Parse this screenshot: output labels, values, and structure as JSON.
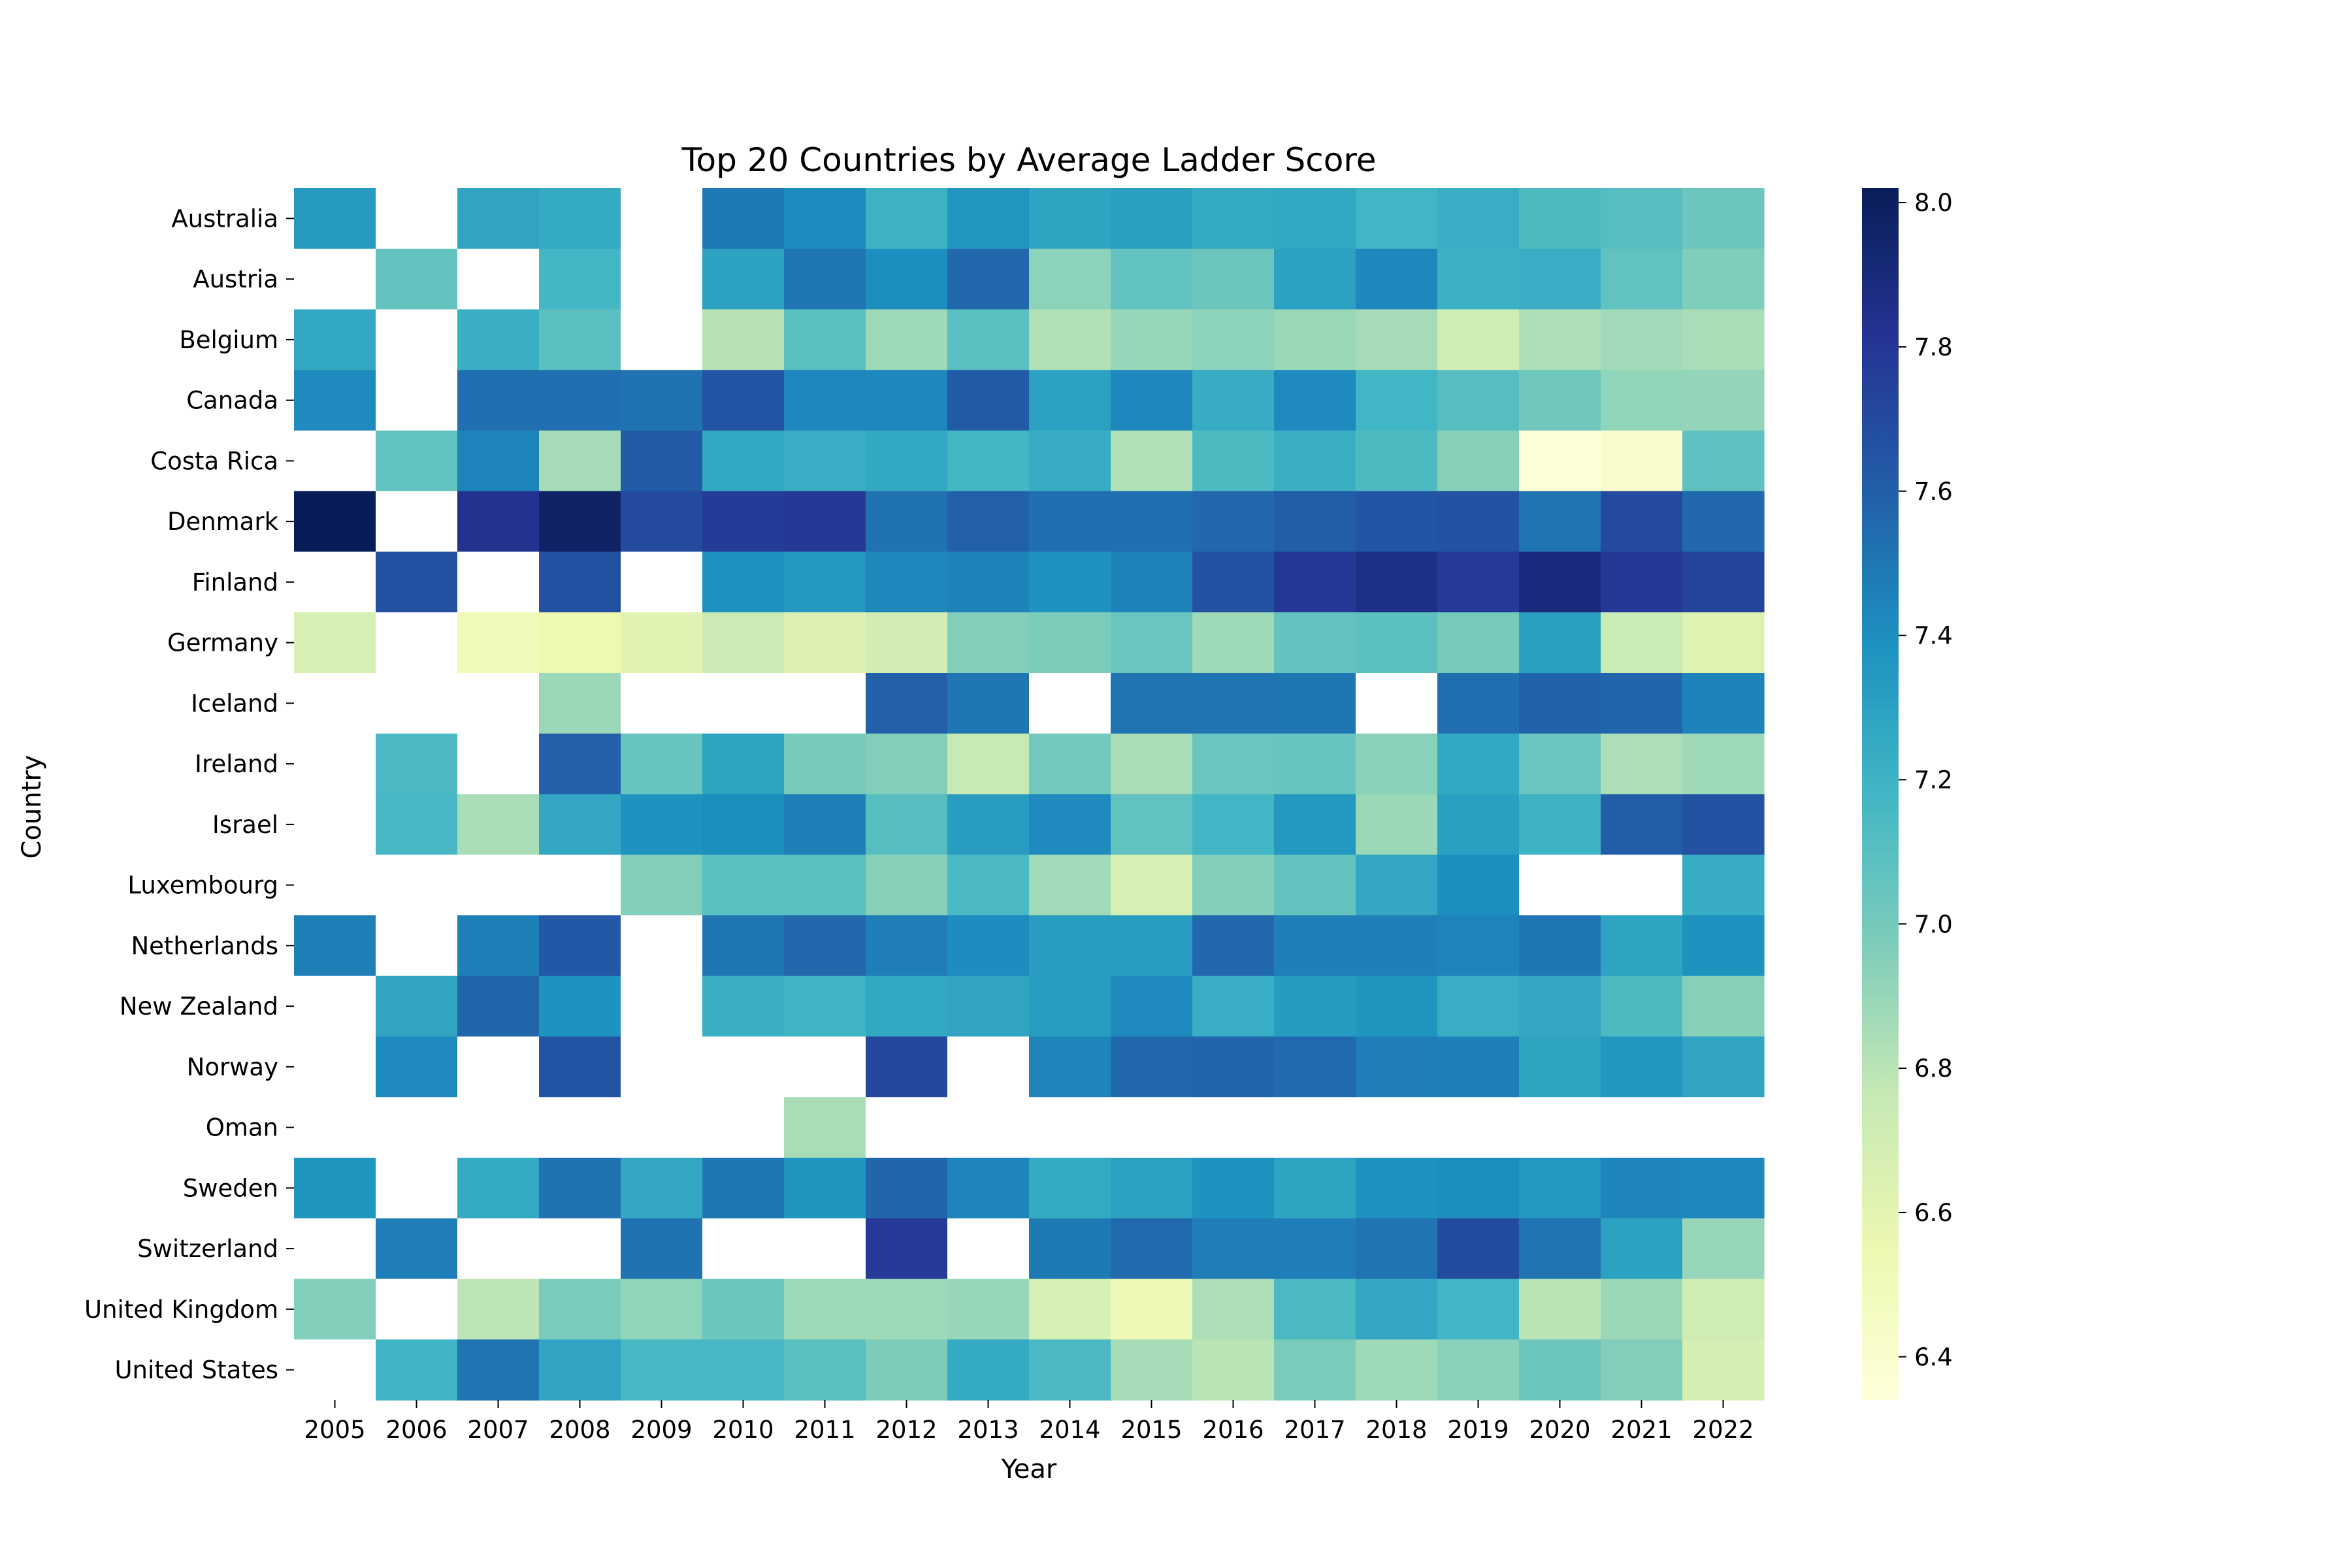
{
  "chart_data": {
    "type": "heatmap",
    "title": "Top 20 Countries by Average Ladder Score",
    "xlabel": "Year",
    "ylabel": "Country",
    "x": [
      "2005",
      "2006",
      "2007",
      "2008",
      "2009",
      "2010",
      "2011",
      "2012",
      "2013",
      "2014",
      "2015",
      "2016",
      "2017",
      "2018",
      "2019",
      "2020",
      "2021",
      "2022"
    ],
    "y": [
      "Australia",
      "Austria",
      "Belgium",
      "Canada",
      "Costa Rica",
      "Denmark",
      "Finland",
      "Germany",
      "Iceland",
      "Ireland",
      "Israel",
      "Luxembourg",
      "Netherlands",
      "New Zealand",
      "Norway",
      "Oman",
      "Sweden",
      "Switzerland",
      "United Kingdom",
      "United States"
    ],
    "values": [
      [
        7.34,
        null,
        7.28,
        7.25,
        null,
        7.49,
        7.41,
        7.2,
        7.36,
        7.29,
        7.31,
        7.25,
        7.26,
        7.18,
        7.23,
        7.14,
        7.11,
        7.03
      ],
      [
        null,
        7.06,
        null,
        7.17,
        null,
        7.3,
        7.5,
        7.4,
        7.56,
        6.93,
        7.07,
        7.03,
        7.3,
        7.43,
        7.21,
        7.23,
        7.07,
        6.97
      ],
      [
        7.26,
        null,
        7.22,
        7.09,
        null,
        6.81,
        7.1,
        6.88,
        7.1,
        6.83,
        6.9,
        6.93,
        6.89,
        6.86,
        6.71,
        6.84,
        6.87,
        6.85
      ],
      [
        7.42,
        null,
        7.53,
        7.53,
        7.52,
        7.65,
        7.43,
        7.43,
        7.61,
        7.3,
        7.43,
        7.24,
        7.42,
        7.18,
        7.11,
        7.02,
        6.92,
        6.91
      ],
      [
        null,
        7.07,
        7.44,
        6.86,
        7.62,
        7.26,
        7.23,
        7.26,
        7.17,
        7.24,
        6.83,
        7.14,
        7.22,
        7.14,
        6.95,
        6.35,
        6.41,
        7.08
      ],
      [
        8.02,
        null,
        7.83,
        7.97,
        7.7,
        7.77,
        7.79,
        7.52,
        7.59,
        7.53,
        7.53,
        7.56,
        7.6,
        7.64,
        7.66,
        7.51,
        7.7,
        7.56
      ],
      [
        null,
        7.67,
        null,
        7.67,
        null,
        7.39,
        7.35,
        7.43,
        7.45,
        7.38,
        7.45,
        7.66,
        7.79,
        7.86,
        7.78,
        7.89,
        7.79,
        7.73
      ],
      [
        6.67,
        null,
        6.51,
        6.55,
        6.62,
        6.73,
        6.64,
        6.7,
        6.96,
        6.98,
        7.04,
        6.88,
        7.06,
        7.09,
        7.0,
        7.31,
        6.74,
        6.63
      ],
      [
        null,
        null,
        null,
        6.89,
        null,
        null,
        null,
        7.59,
        7.5,
        null,
        7.51,
        7.51,
        7.5,
        null,
        7.53,
        7.58,
        7.57,
        7.45
      ],
      [
        null,
        7.15,
        null,
        7.59,
        7.05,
        7.29,
        7.0,
        6.96,
        6.76,
        7.01,
        6.85,
        7.04,
        7.05,
        6.94,
        7.26,
        7.04,
        6.84,
        6.88
      ],
      [
        null,
        7.16,
        6.85,
        7.27,
        7.38,
        7.4,
        7.46,
        7.11,
        7.32,
        7.42,
        7.07,
        7.18,
        7.35,
        6.89,
        7.31,
        7.2,
        7.6,
        7.66
      ],
      [
        null,
        null,
        null,
        null,
        6.96,
        7.1,
        7.1,
        6.95,
        7.15,
        6.87,
        6.67,
        6.96,
        7.06,
        7.27,
        7.4,
        null,
        null,
        7.24
      ],
      [
        7.46,
        null,
        7.46,
        7.63,
        null,
        7.5,
        7.56,
        7.47,
        7.41,
        7.32,
        7.32,
        7.56,
        7.46,
        7.46,
        7.44,
        7.5,
        7.29,
        7.38
      ],
      [
        null,
        7.28,
        7.57,
        7.38,
        null,
        7.22,
        7.19,
        7.26,
        7.28,
        7.32,
        7.42,
        7.23,
        7.33,
        7.37,
        7.23,
        7.27,
        7.14,
        6.95
      ],
      [
        null,
        7.42,
        null,
        7.65,
        null,
        null,
        null,
        7.71,
        null,
        7.44,
        7.56,
        7.57,
        7.55,
        7.47,
        7.46,
        7.29,
        7.36,
        7.28
      ],
      [
        null,
        null,
        null,
        null,
        null,
        null,
        6.85,
        null,
        null,
        null,
        null,
        null,
        null,
        null,
        null,
        null,
        null,
        null
      ],
      [
        7.37,
        null,
        7.25,
        7.52,
        7.27,
        7.5,
        7.37,
        7.57,
        7.44,
        7.25,
        7.3,
        7.38,
        7.29,
        7.38,
        7.4,
        7.35,
        7.44,
        7.43
      ],
      [
        null,
        7.47,
        null,
        null,
        7.52,
        null,
        null,
        7.78,
        null,
        7.49,
        7.55,
        7.47,
        7.47,
        7.51,
        7.69,
        7.51,
        7.3,
        6.9
      ],
      [
        6.96,
        null,
        6.79,
        6.99,
        6.92,
        7.03,
        6.88,
        6.88,
        6.9,
        6.67,
        6.52,
        6.84,
        7.15,
        7.27,
        7.18,
        6.8,
        6.89,
        6.72
      ],
      [
        null,
        7.19,
        7.51,
        7.28,
        7.16,
        7.16,
        7.1,
        6.98,
        7.25,
        7.15,
        6.86,
        6.8,
        6.99,
        6.88,
        6.94,
        7.03,
        6.96,
        6.69
      ]
    ],
    "colormap": "YlGnBu",
    "missing_color": "#ffffff",
    "colorbar": {
      "vmin": 6.34,
      "vmax": 8.02,
      "ticks": [
        6.4,
        6.6,
        6.8,
        7.0,
        7.2,
        7.4,
        7.6,
        7.8,
        8.0
      ],
      "tick_labels": [
        "6.4",
        "6.6",
        "6.8",
        "7.0",
        "7.2",
        "7.4",
        "7.6",
        "7.8",
        "8.0"
      ]
    },
    "grid": false,
    "legend": "colorbar-right"
  }
}
